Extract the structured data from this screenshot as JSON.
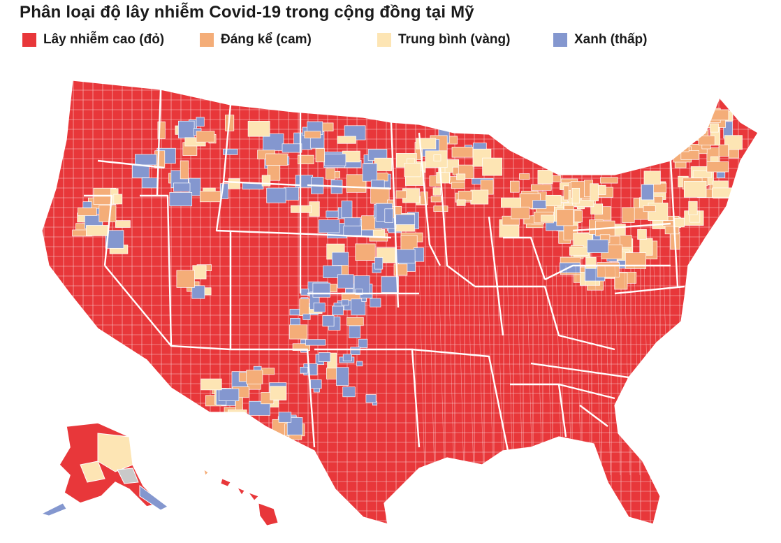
{
  "title": "Phân loại độ lây nhiễm Covid-19 trong cộng đồng tại Mỹ",
  "legend": [
    {
      "key": "high",
      "label": "Lây nhiễm cao (đỏ)",
      "color": "#e8373a"
    },
    {
      "key": "substantial",
      "label": "Đáng kể (cam)",
      "color": "#f4ad78"
    },
    {
      "key": "moderate",
      "label": "Trung bình (vàng)",
      "color": "#fde5b4"
    },
    {
      "key": "low",
      "label": "Xanh (thấp)",
      "color": "#8497cf"
    }
  ],
  "colors": {
    "high": "#e8373a",
    "substantial": "#f4ad78",
    "moderate": "#fde5b4",
    "low": "#8497cf",
    "no_data": "#c9c9c9",
    "border": "#ffffff"
  }
}
